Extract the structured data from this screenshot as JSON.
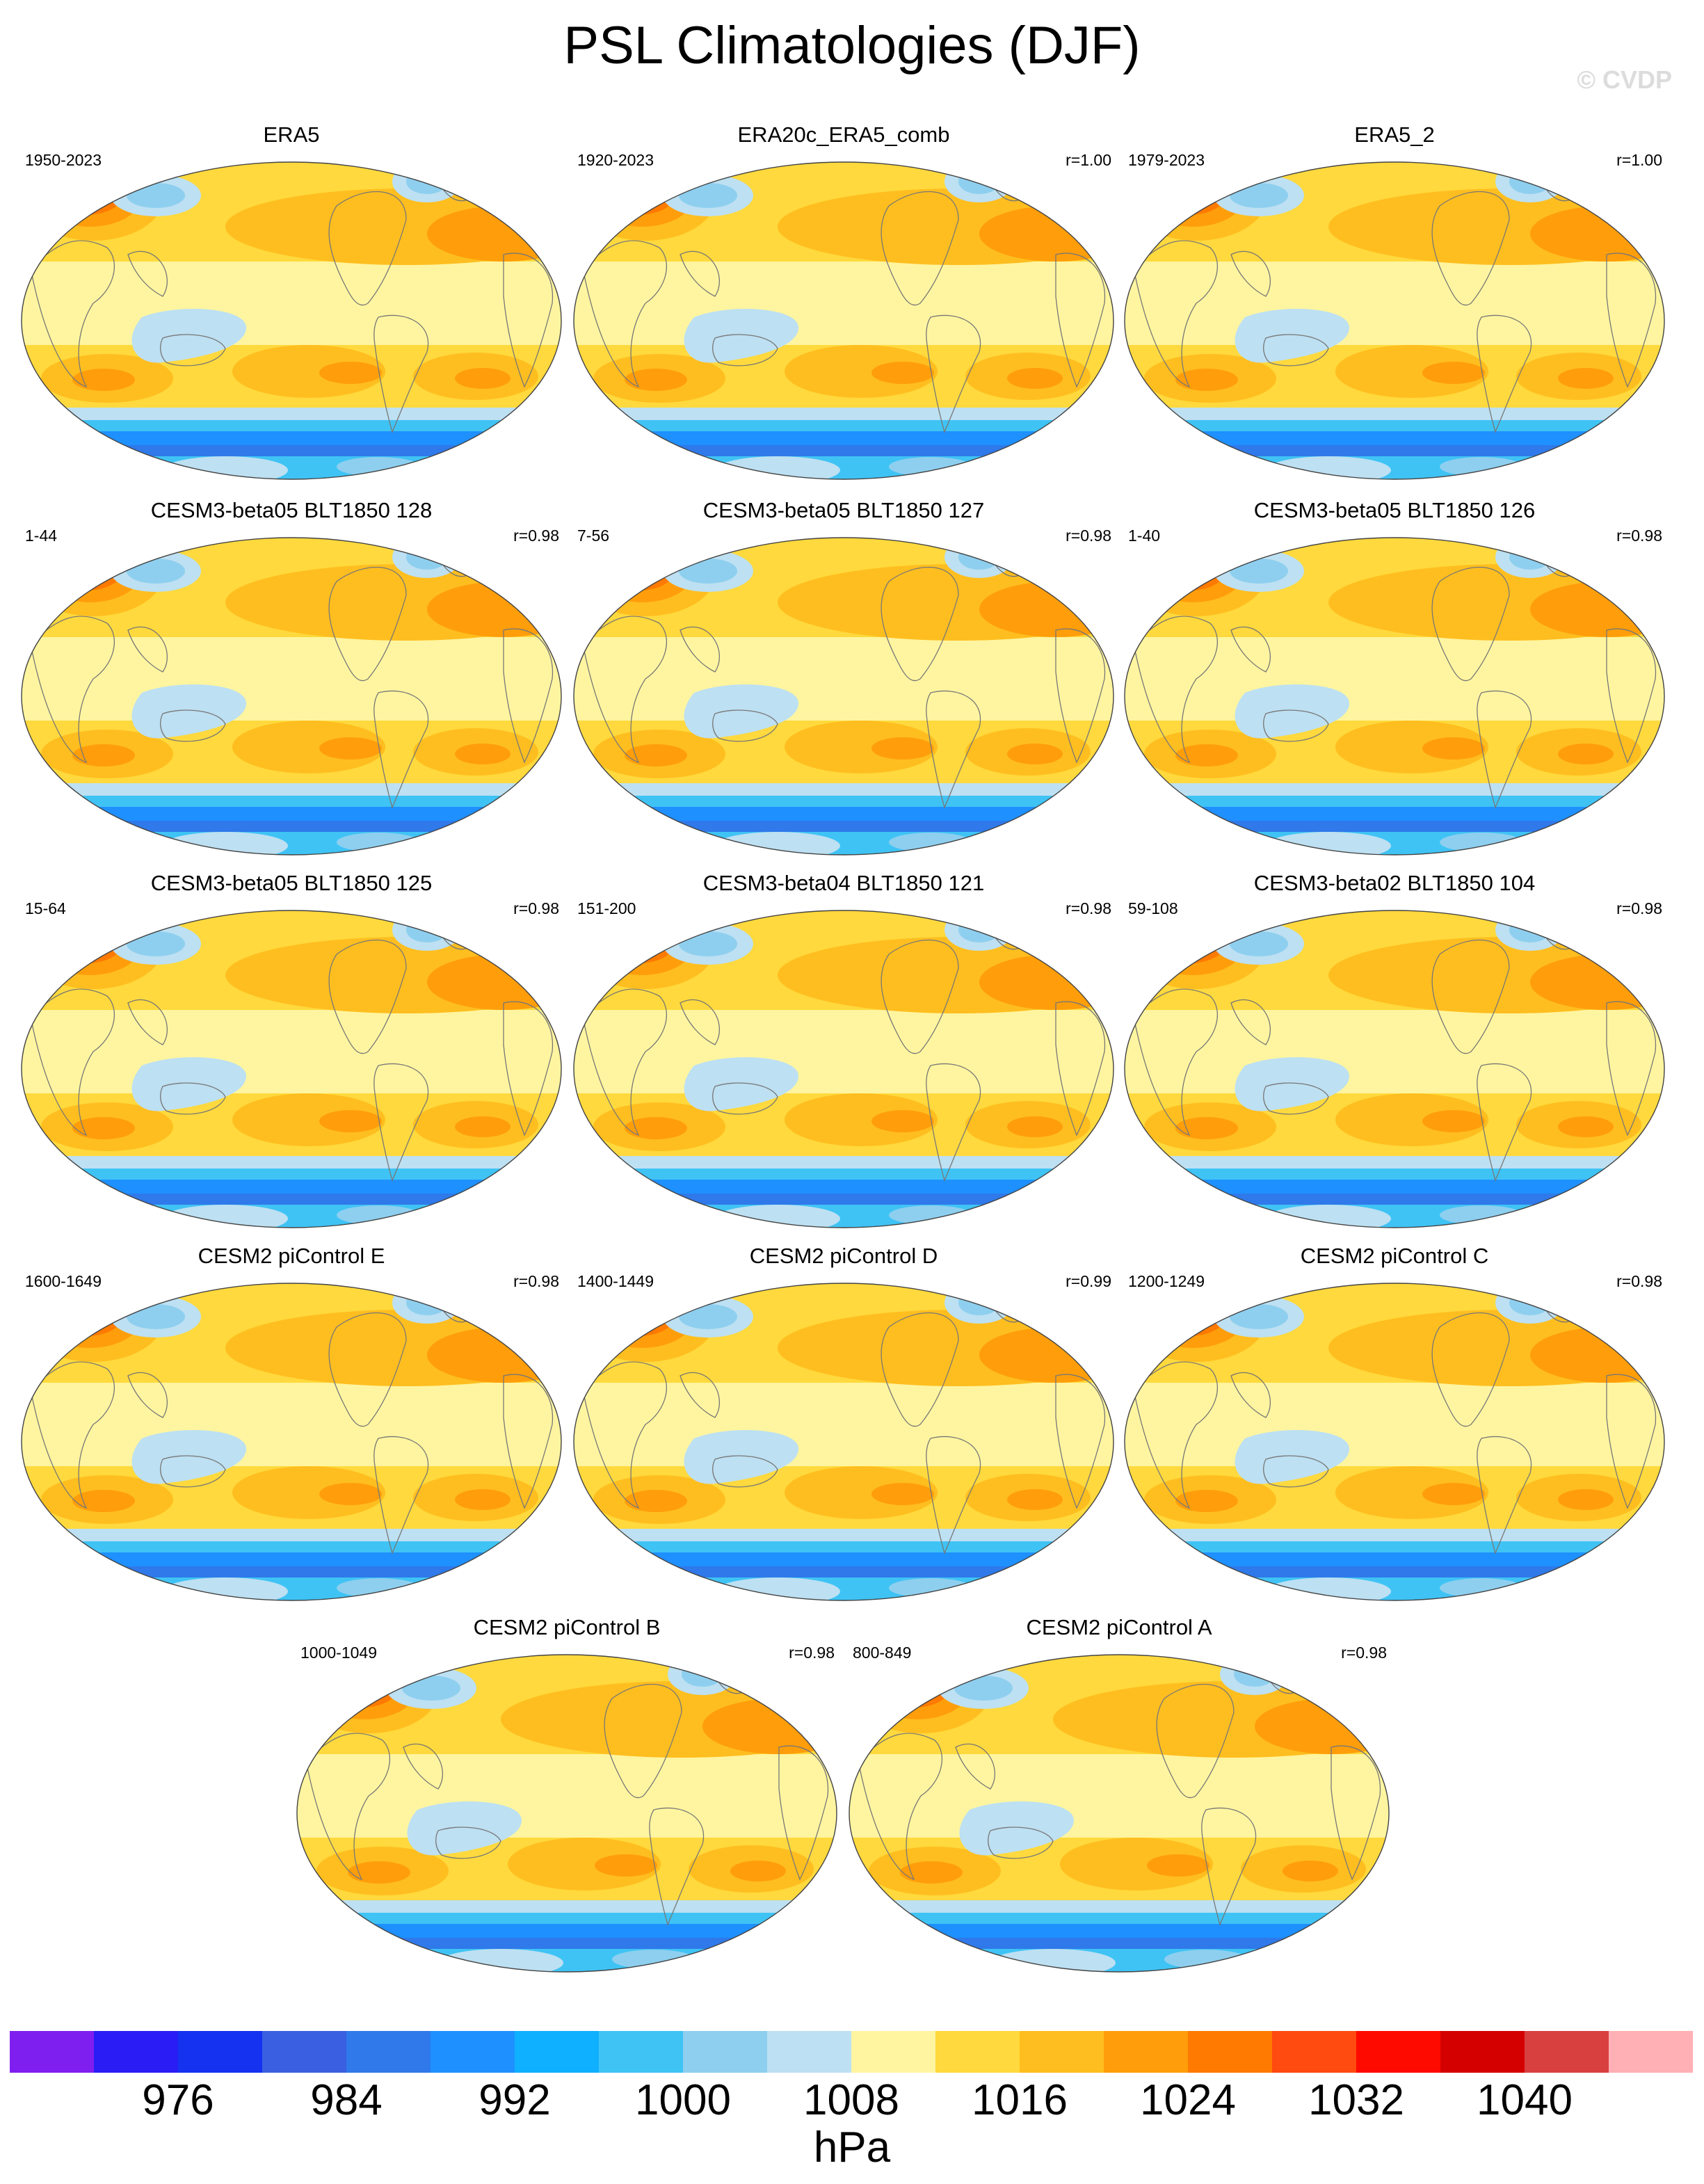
{
  "title": "PSL Climatologies (DJF)",
  "copyright": "© CVDP",
  "panels": [
    {
      "title": "ERA5",
      "years": "1950-2023",
      "corr": ""
    },
    {
      "title": "ERA20c_ERA5_comb",
      "years": "1920-2023",
      "corr": "r=1.00"
    },
    {
      "title": "ERA5_2",
      "years": "1979-2023",
      "corr": "r=1.00"
    },
    {
      "title": "CESM3-beta05 BLT1850 128",
      "years": "1-44",
      "corr": "r=0.98"
    },
    {
      "title": "CESM3-beta05 BLT1850 127",
      "years": "7-56",
      "corr": "r=0.98"
    },
    {
      "title": "CESM3-beta05 BLT1850 126",
      "years": "1-40",
      "corr": "r=0.98"
    },
    {
      "title": "CESM3-beta05 BLT1850 125",
      "years": "15-64",
      "corr": "r=0.98"
    },
    {
      "title": "CESM3-beta04 BLT1850 121",
      "years": "151-200",
      "corr": "r=0.98"
    },
    {
      "title": "CESM3-beta02 BLT1850 104",
      "years": "59-108",
      "corr": "r=0.98"
    },
    {
      "title": "CESM2 piControl E",
      "years": "1600-1649",
      "corr": "r=0.98"
    },
    {
      "title": "CESM2 piControl D",
      "years": "1400-1449",
      "corr": "r=0.99"
    },
    {
      "title": "CESM2 piControl C",
      "years": "1200-1249",
      "corr": "r=0.98"
    },
    {
      "title": "CESM2 piControl B",
      "years": "1000-1049",
      "corr": "r=0.98"
    },
    {
      "title": "CESM2 piControl A",
      "years": "800-849",
      "corr": "r=0.98"
    }
  ],
  "colorbar": {
    "colors": [
      "#7f1fef",
      "#2a1cf5",
      "#1432f0",
      "#3a5fe0",
      "#2f79ea",
      "#1e90ff",
      "#0fb0ff",
      "#3fc3f5",
      "#8ecfef",
      "#bde0f2",
      "#fff5a0",
      "#ffd93d",
      "#ffbe1f",
      "#ff9e0a",
      "#ff7a00",
      "#ff4a10",
      "#ff0a00",
      "#d40000",
      "#d84040",
      "#ffb0b4"
    ],
    "labels": [
      "976",
      "984",
      "992",
      "1000",
      "1008",
      "1016",
      "1024",
      "1032",
      "1040"
    ],
    "units": "hPa"
  }
}
